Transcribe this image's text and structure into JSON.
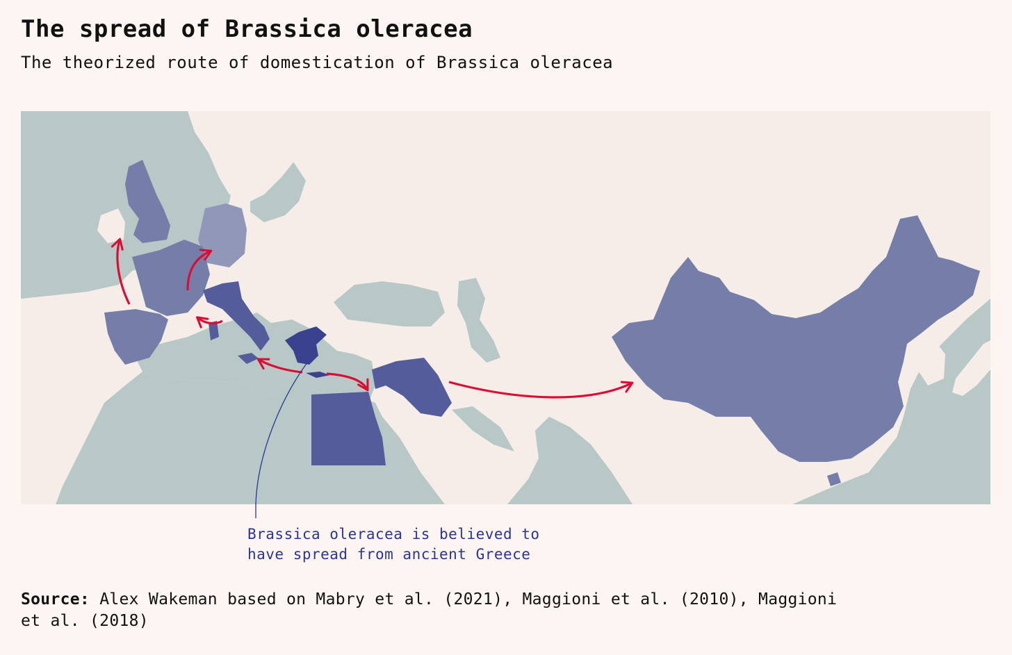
{
  "header": {
    "title": "The spread of Brassica oleracea",
    "subtitle": "The theorized route of domestication of Brassica oleracea"
  },
  "map": {
    "annotation_line1": "Brassica oleracea is believed to",
    "annotation_line2": "have spread from ancient Greece",
    "origin_region": "Greece",
    "highlighted_regions": [
      "Greece",
      "Italy",
      "France",
      "Spain",
      "United Kingdom",
      "Germany",
      "Egypt",
      "Levant",
      "China"
    ],
    "colors": {
      "water": "#b8c8c7",
      "land": "#f6ede9",
      "origin": "#3a418f",
      "primary_spread": "#545c9b",
      "secondary_spread": "#757ea9",
      "tertiary_spread": "#9097b8",
      "arrow": "#dc0d35",
      "annotation": "#2b3593"
    }
  },
  "footer": {
    "source_label": "Source:",
    "source_text": "Alex Wakeman based on Mabry et al. (2021), Maggioni et al. (2010), Maggioni et al. (2018)"
  }
}
